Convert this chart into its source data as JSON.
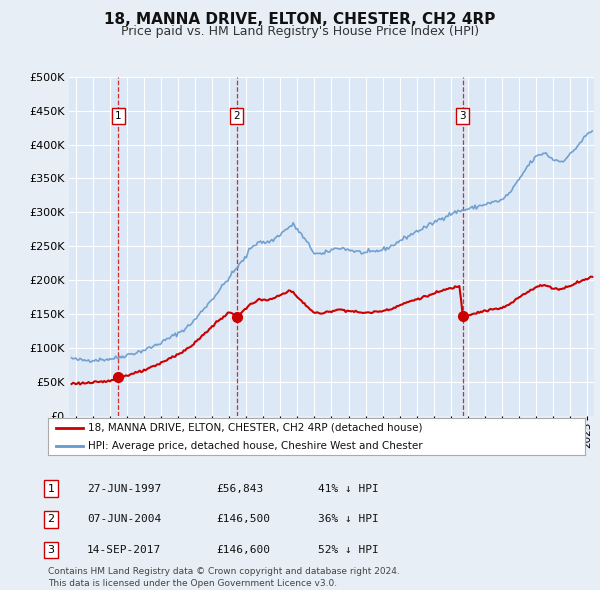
{
  "title": "18, MANNA DRIVE, ELTON, CHESTER, CH2 4RP",
  "subtitle": "Price paid vs. HM Land Registry's House Price Index (HPI)",
  "ylim": [
    0,
    500000
  ],
  "yticks": [
    0,
    50000,
    100000,
    150000,
    200000,
    250000,
    300000,
    350000,
    400000,
    450000,
    500000
  ],
  "xlim_start": 1994.6,
  "xlim_end": 2025.4,
  "background_color": "#e8eef5",
  "plot_bg": "#dce8f5",
  "grid_color": "#c8d8e8",
  "sale_dates": [
    1997.49,
    2004.44,
    2017.71
  ],
  "sale_prices": [
    56843,
    146500,
    146600
  ],
  "sale_labels": [
    "1",
    "2",
    "3"
  ],
  "legend_line1": "18, MANNA DRIVE, ELTON, CHESTER, CH2 4RP (detached house)",
  "legend_line2": "HPI: Average price, detached house, Cheshire West and Chester",
  "table_data": [
    [
      "1",
      "27-JUN-1997",
      "£56,843",
      "41% ↓ HPI"
    ],
    [
      "2",
      "07-JUN-2004",
      "£146,500",
      "36% ↓ HPI"
    ],
    [
      "3",
      "14-SEP-2017",
      "£146,600",
      "52% ↓ HPI"
    ]
  ],
  "footnote": "Contains HM Land Registry data © Crown copyright and database right 2024.\nThis data is licensed under the Open Government Licence v3.0.",
  "hpi_color": "#6699cc",
  "price_color": "#cc0000"
}
